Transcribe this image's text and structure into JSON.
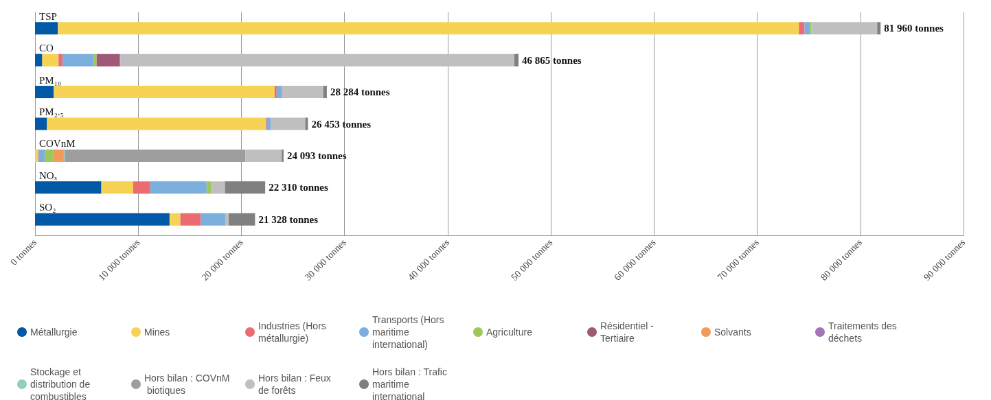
{
  "chart_data": {
    "type": "bar",
    "orientation": "horizontal",
    "stacked": true,
    "categories": [
      "TSP",
      "CO",
      "PM₁₀",
      "PM₂.₅",
      "COVnM",
      "NOₓ",
      "SO₂"
    ],
    "series": [
      {
        "name": "Métallurgie",
        "color": "#0058a6",
        "values": [
          2220,
          700,
          1820,
          1160,
          null,
          6430,
          13040
        ]
      },
      {
        "name": "Mines",
        "color": "#f6d355",
        "values": [
          71820,
          1580,
          21400,
          21210,
          290,
          3090,
          1050
        ]
      },
      {
        "name": "Industries (Hors métallurgie)",
        "color": "#ec6b70",
        "values": [
          550,
          400,
          200,
          90,
          70,
          1650,
          1980
        ]
      },
      {
        "name": "Transports (Hors maritime international)",
        "color": "#7bb0de",
        "values": [
          510,
          3030,
          460,
          370,
          590,
          5460,
          2370
        ]
      },
      {
        "name": "Agriculture",
        "color": "#9ec75a",
        "values": [
          170,
          260,
          null,
          null,
          790,
          460,
          null
        ]
      },
      {
        "name": "Résidentiel - Tertiaire",
        "color": "#a05a76",
        "values": [
          null,
          2240,
          null,
          null,
          null,
          null,
          null
        ]
      },
      {
        "name": "Solvants",
        "color": "#f2995c",
        "values": [
          null,
          null,
          null,
          null,
          1030,
          null,
          null
        ]
      },
      {
        "name": "Traitements des déchets",
        "color": "#a672b8",
        "values": [
          null,
          70,
          70,
          null,
          70,
          null,
          null
        ]
      },
      {
        "name": "Stockage et distribution de combustibles",
        "color": "#93d0b8",
        "values": [
          70,
          null,
          null,
          null,
          90,
          null,
          null
        ]
      },
      {
        "name": "Hors bilan : COVnM biotiques",
        "color": "#9e9e9e",
        "values": [
          null,
          null,
          null,
          null,
          17473,
          null,
          null
        ]
      },
      {
        "name": "Hors bilan : Feux de forêts",
        "color": "#bfbfbf",
        "values": [
          6290,
          38185,
          3984,
          3363,
          3510,
          1320,
          330
        ]
      },
      {
        "name": "Hors bilan : Trafic maritime international",
        "color": "#808080",
        "values": [
          330,
          400,
          350,
          260,
          180,
          3900,
          2558
        ]
      }
    ],
    "totals": [
      "81 960 tonnes",
      "46 865 tonnes",
      "28 284 tonnes",
      "26 453 tonnes",
      "24 093 tonnes",
      "22 310 tonnes",
      "21 328 tonnes"
    ],
    "xlim": [
      0,
      90000
    ],
    "xticks": [
      {
        "value": 0,
        "label": "0 tonnes"
      },
      {
        "value": 10000,
        "label": "10 000 tonnes"
      },
      {
        "value": 20000,
        "label": "20 000 tonnes"
      },
      {
        "value": 30000,
        "label": "30 000 tonnes"
      },
      {
        "value": 40000,
        "label": "40 000 tonnes"
      },
      {
        "value": 50000,
        "label": "50 000 tonnes"
      },
      {
        "value": 60000,
        "label": "60 000 tonnes"
      },
      {
        "value": 70000,
        "label": "70 000 tonnes"
      },
      {
        "value": 80000,
        "label": "80 000 tonnes"
      },
      {
        "value": 90000,
        "label": "90 000 tonnes"
      }
    ],
    "grid": "x",
    "legend": "bottom"
  }
}
